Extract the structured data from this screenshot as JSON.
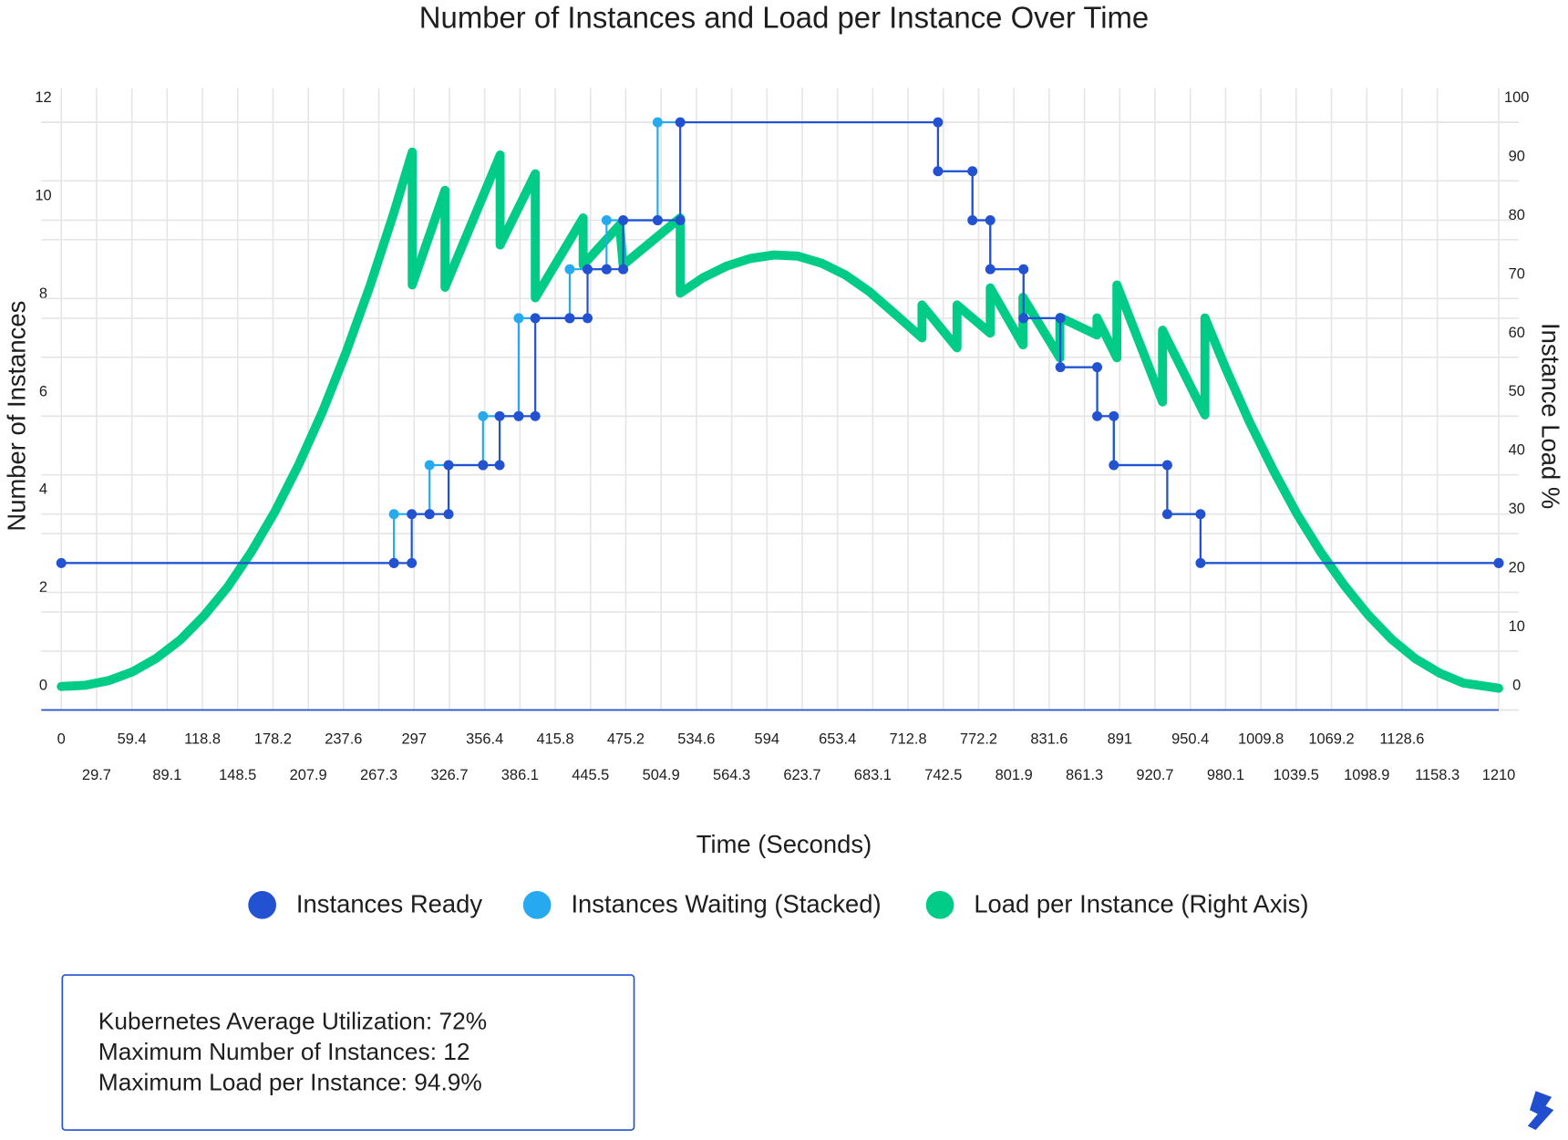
{
  "chart_data": {
    "type": "line",
    "title": "Number of Instances and Load per Instance Over Time",
    "x_label": "Time (Seconds)",
    "y_label": "Number of Instances",
    "y2_label": "Instance Load %",
    "xlim": [
      0,
      1210
    ],
    "xticks": [
      0,
      29.7,
      59.4,
      89.1,
      118.8,
      148.5,
      178.2,
      207.9,
      237.6,
      267.3,
      297,
      326.7,
      356.4,
      386.1,
      415.8,
      445.5,
      475.2,
      504.9,
      534.6,
      564.3,
      594,
      623.7,
      653.4,
      683.1,
      712.8,
      742.5,
      772.2,
      801.9,
      831.6,
      861.3,
      891,
      920.7,
      950.4,
      980.1,
      1009.8,
      1039.5,
      1069.2,
      1098.9,
      1128.6,
      1158.3,
      1210
    ],
    "ylim": [
      0,
      12.7
    ],
    "yticks": [
      0,
      2,
      4,
      6,
      8,
      10,
      12
    ],
    "y2lim": [
      0,
      105.8
    ],
    "y2ticks": [
      0,
      10,
      20,
      30,
      40,
      50,
      60,
      70,
      80,
      90,
      100
    ],
    "grid": true,
    "legend": "bottom",
    "series": [
      {
        "name": "Instances Ready",
        "color": "#2251d1",
        "type": "step",
        "x": [
          0,
          280,
          295,
          310,
          326,
          355,
          369,
          385,
          399,
          428,
          443,
          459,
          473,
          502,
          521,
          738,
          767,
          782,
          810,
          841,
          872,
          886,
          931,
          959,
          1210
        ],
        "values": [
          3,
          3,
          4,
          4,
          5,
          5,
          6,
          6,
          8,
          8,
          9,
          9,
          10,
          10,
          12,
          11,
          10,
          9,
          8,
          7,
          6,
          5,
          4,
          3,
          3
        ]
      },
      {
        "name": "Instances Waiting (Stacked)",
        "color": "#27a9ef",
        "type": "step",
        "stacked": true,
        "x": [
          0,
          280,
          295,
          310,
          326,
          355,
          369,
          385,
          399,
          428,
          443,
          459,
          473,
          502,
          521,
          738,
          767,
          782,
          810,
          841,
          872,
          886,
          931,
          959,
          1210
        ],
        "values": [
          0,
          1,
          0,
          1,
          0,
          1,
          0,
          2,
          0,
          1,
          0,
          1,
          0,
          2,
          0,
          0,
          0,
          0,
          0,
          0,
          0,
          0,
          0,
          0,
          0
        ]
      },
      {
        "name": "Load per Instance (Right Axis)",
        "color": "#00cc88",
        "axis": "y2",
        "x": [
          0,
          20,
          40,
          60,
          80,
          100,
          120,
          140,
          160,
          180,
          200,
          220,
          240,
          260,
          280,
          295.4,
          295.4,
          323,
          323,
          369.4,
          369.4,
          399,
          399,
          439.3,
          439.3,
          470,
          472.9,
          521,
          521,
          540,
          560,
          580,
          600,
          620,
          640,
          660,
          680,
          700,
          724.5,
          724.5,
          754,
          754,
          782,
          782,
          809.5,
          809.5,
          840.6,
          840.6,
          871.8,
          871.8,
          888.6,
          888.6,
          927,
          927,
          962.7,
          962.7,
          980,
          1000,
          1020,
          1040,
          1060,
          1080,
          1100,
          1120,
          1140,
          1160,
          1180,
          1210
        ],
        "values": [
          4,
          4.2,
          5,
          6.5,
          8.8,
          11.9,
          16,
          20.9,
          26.9,
          33.8,
          41.8,
          50.8,
          61,
          72.2,
          84.6,
          94.9,
          72.3,
          88.4,
          71.9,
          94.4,
          79.1,
          91.2,
          70.1,
          83.7,
          75.7,
          82.5,
          75.7,
          83.7,
          70.9,
          73.5,
          75.5,
          76.8,
          77.4,
          77.2,
          76,
          74,
          71.2,
          67.7,
          63.3,
          68.9,
          61.6,
          68.9,
          64.1,
          71.8,
          62.1,
          70.2,
          59.9,
          66.8,
          63.8,
          66.7,
          59.9,
          72.3,
          52.4,
          64.6,
          50.2,
          66.7,
          58.2,
          49.1,
          40.9,
          33.4,
          26.9,
          21.2,
          16.2,
          12,
          8.7,
          6.3,
          4.6,
          3.7
        ]
      }
    ],
    "annotations": [
      "Kubernetes Average Utilization: 72%",
      "Maximum Number of Instances: 12",
      "Maximum Load per Instance: 94.9%"
    ]
  }
}
